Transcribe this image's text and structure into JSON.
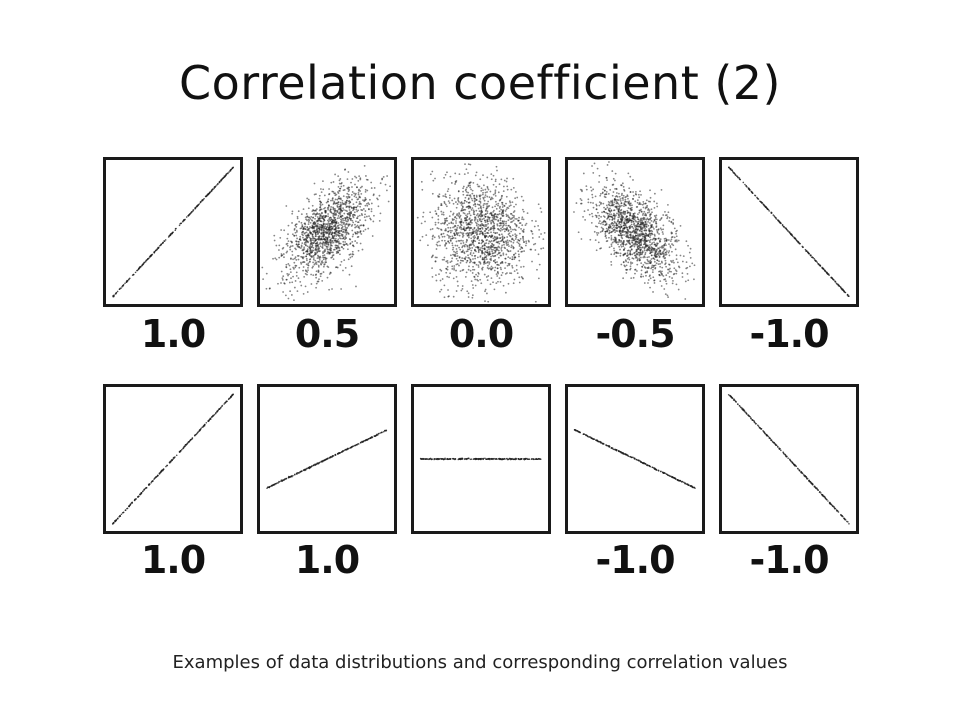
{
  "title": "Correlation coefficient (2)",
  "caption": "Examples of data distributions and corresponding correlation values",
  "colors": {
    "points": "#222222",
    "frame": "#1a1a1a"
  },
  "chart_data": [
    {
      "type": "scatter",
      "panels": [
        {
          "label": "1.0",
          "r": 1.0,
          "slope": 1.0,
          "spread": 0.0
        },
        {
          "label": "0.5",
          "r": 0.5,
          "slope": 1.0,
          "spread": 0.5
        },
        {
          "label": "0.0",
          "r": 0.0,
          "slope": 0.0,
          "spread": 1.0
        },
        {
          "label": "-0.5",
          "r": -0.5,
          "slope": -1.0,
          "spread": 0.5
        },
        {
          "label": "-1.0",
          "r": -1.0,
          "slope": -1.0,
          "spread": 0.0
        }
      ]
    },
    {
      "type": "scatter",
      "panels": [
        {
          "label": "1.0",
          "r": 1.0,
          "slope": 1.0,
          "spread": 0.0
        },
        {
          "label": "1.0",
          "r": 1.0,
          "slope": 0.45,
          "spread": 0.0
        },
        {
          "label": "",
          "r": null,
          "slope": 0.0,
          "spread": 0.0
        },
        {
          "label": "-1.0",
          "r": -1.0,
          "slope": -0.45,
          "spread": 0.0
        },
        {
          "label": "-1.0",
          "r": -1.0,
          "slope": -1.0,
          "spread": 0.0
        }
      ]
    }
  ]
}
